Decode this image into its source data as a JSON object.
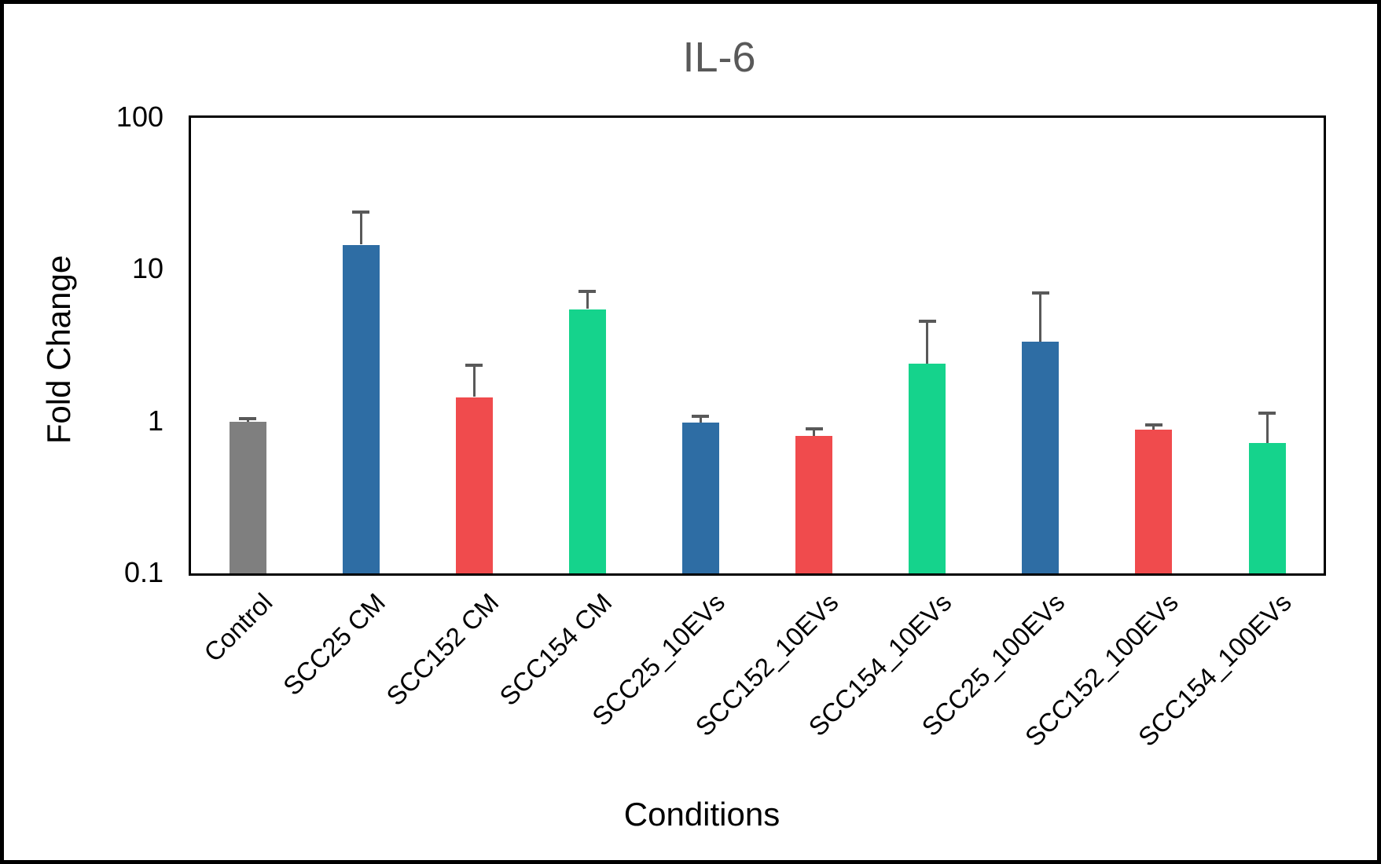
{
  "chart_data": {
    "type": "bar",
    "title": "IL-6",
    "xlabel": "Conditions",
    "ylabel": "Fold Change",
    "y_scale": "log",
    "ylim": [
      0.1,
      100
    ],
    "yticks": [
      {
        "value": 100,
        "label": "100"
      },
      {
        "value": 10,
        "label": "10"
      },
      {
        "value": 1,
        "label": "1"
      },
      {
        "value": 0.1,
        "label": "0.1"
      }
    ],
    "categories": [
      "Control",
      "SCC25 CM",
      "SCC152 CM",
      "SCC154 CM",
      "SCC25_10EVs",
      "SCC152_10EVs",
      "SCC154_10EVs",
      "SCC25_100EVs",
      "SCC152_100EVs",
      "SCC154_100EVs"
    ],
    "series": [
      {
        "name": "Fold Change",
        "values": [
          1.0,
          14.6,
          1.45,
          5.5,
          0.98,
          0.8,
          2.4,
          3.35,
          0.88,
          0.72
        ],
        "error_top": [
          1.05,
          24.0,
          2.35,
          7.2,
          1.08,
          0.9,
          4.6,
          7.0,
          0.95,
          1.13
        ]
      }
    ],
    "bar_colors": [
      "#7F7F7F",
      "#2E6DA4",
      "#F04B4D",
      "#15D38C",
      "#2E6DA4",
      "#F04B4D",
      "#15D38C",
      "#2E6DA4",
      "#F04B4D",
      "#15D38C"
    ],
    "color_legend": {
      "Control": "#7F7F7F",
      "SCC25": "#2E6DA4",
      "SCC152": "#F04B4D",
      "SCC154": "#15D38C"
    },
    "error_bar_color": "#595959",
    "title_color": "#595959",
    "grid": false,
    "legend": "none"
  }
}
